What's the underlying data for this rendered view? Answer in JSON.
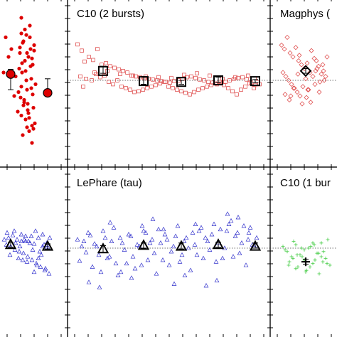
{
  "figure": {
    "background": "#ffffff",
    "frame_color": "#000000"
  },
  "chart_data": [
    {
      "panel": "top-left",
      "type": "scatter",
      "title": "",
      "color": "#dd0000",
      "marker": "filled-circle",
      "x": [
        8,
        16,
        12,
        5,
        20,
        30,
        38,
        45,
        33,
        42,
        48,
        28,
        35,
        40,
        46,
        22,
        31,
        37,
        50,
        44,
        26,
        34,
        39,
        47,
        30,
        43,
        25,
        36,
        49,
        32,
        41,
        27,
        38,
        45,
        30,
        35,
        42,
        48,
        29,
        33,
        40,
        36,
        44,
        31,
        38,
        46,
        28,
        34,
        41,
        47,
        32,
        37,
        43,
        30,
        39,
        45
      ],
      "y": [
        0.55,
        0.4,
        0.3,
        0.1,
        -0.2,
        -0.45,
        -0.6,
        -0.8,
        0.5,
        0.7,
        0.45,
        0.35,
        0.25,
        0.3,
        0.2,
        0.05,
        0.1,
        0.0,
        -0.05,
        -0.1,
        -0.15,
        -0.25,
        -0.3,
        -0.35,
        0.6,
        0.4,
        -0.4,
        -0.5,
        -0.55,
        -0.7,
        -0.65,
        0.15,
        0.35,
        0.28,
        0.8,
        0.65,
        0.55,
        0.38,
        -0.22,
        -0.32,
        -0.42,
        0.12,
        0.02,
        0.22,
        -0.12,
        -0.18,
        0.42,
        -0.28,
        -0.48,
        -0.62,
        0.48,
        0.58,
        0.18,
        -0.08,
        -0.38,
        -0.58
      ],
      "binned": {
        "x": [
          15,
          67
        ],
        "y": [
          0.08,
          -0.16
        ],
        "err_low": [
          0.2,
          0.03
        ],
        "err_high": [
          0.06,
          0.18
        ],
        "marker": "large-filled-circle"
      }
    },
    {
      "panel": "top-middle",
      "type": "scatter",
      "title": "C10 (2 bursts)",
      "color": "#e05555",
      "marker": "open-square",
      "x": [
        14,
        20,
        24,
        30,
        36,
        42,
        48,
        54,
        60,
        66,
        72,
        78,
        84,
        90,
        96,
        102,
        108,
        114,
        120,
        126,
        132,
        138,
        144,
        150,
        156,
        162,
        168,
        174,
        180,
        186,
        192,
        198,
        204,
        210,
        216,
        222,
        228,
        234,
        240,
        246,
        252,
        258,
        264,
        270,
        18,
        26,
        34,
        40,
        46,
        52,
        58,
        64,
        70,
        76,
        82,
        88,
        94,
        100,
        106,
        112,
        118,
        124,
        130,
        136,
        142,
        148,
        154,
        160,
        166,
        172,
        178,
        184,
        190,
        196,
        202,
        208,
        214,
        220,
        226,
        232,
        238,
        244,
        250,
        256,
        262,
        22,
        38,
        56,
        74,
        92,
        110,
        128,
        146,
        164,
        182,
        200,
        218,
        236,
        254,
        268
      ],
      "y": [
        0.46,
        0.38,
        0.24,
        0.3,
        0.26,
        0.4,
        0.2,
        0.22,
        0.18,
        0.16,
        0.14,
        0.12,
        0.1,
        0.06,
        0.05,
        0.04,
        0.03,
        0.02,
        0.01,
        0.0,
        -0.01,
        -0.02,
        -0.03,
        -0.01,
        0.0,
        0.02,
        0.04,
        0.05,
        0.03,
        0.01,
        0.0,
        -0.02,
        -0.03,
        -0.05,
        -0.04,
        -0.02,
        0.0,
        0.02,
        0.03,
        0.04,
        0.01,
        -0.03,
        -0.06,
        -0.05,
        0.05,
        0.02,
        0.0,
        0.08,
        0.04,
        0.06,
        -0.02,
        -0.05,
        0.0,
        -0.08,
        -0.1,
        -0.12,
        -0.15,
        -0.14,
        -0.12,
        -0.1,
        -0.08,
        -0.06,
        -0.04,
        -0.02,
        -0.08,
        -0.1,
        -0.12,
        -0.14,
        -0.16,
        -0.18,
        -0.15,
        -0.12,
        -0.1,
        -0.08,
        -0.06,
        -0.04,
        -0.02,
        -0.06,
        -0.1,
        -0.14,
        -0.18,
        -0.12,
        -0.08,
        -0.04,
        -0.1,
        -0.08,
        0.1,
        0.12,
        0.08,
        0.06,
        0.05,
        0.04,
        0.03,
        0.07,
        0.09,
        0.06,
        0.02,
        0.04,
        0.06,
        0.02
      ],
      "binned": {
        "x": [
          50,
          107,
          160,
          212,
          264
        ],
        "y": [
          0.12,
          -0.01,
          -0.02,
          0.0,
          -0.01
        ],
        "err_low": [
          0.03,
          0.04,
          0.03,
          0.03,
          0.02
        ],
        "err_high": [
          0.06,
          0.06,
          0.02,
          0.04,
          0.02
        ],
        "marker": "large-open-square"
      }
    },
    {
      "panel": "top-right",
      "type": "scatter",
      "title": "Magphys (",
      "color": "#e05555",
      "marker": "open-diamond",
      "x": [
        16,
        20,
        24,
        28,
        32,
        36,
        40,
        44,
        48,
        52,
        56,
        60,
        64,
        68,
        72,
        76,
        80,
        18,
        22,
        26,
        30,
        34,
        38,
        42,
        46,
        50,
        54,
        58,
        62,
        66,
        70,
        74,
        78,
        21,
        27,
        33,
        39,
        45,
        51,
        57,
        63,
        69,
        75,
        29,
        41,
        53,
        65
      ],
      "y": [
        0.45,
        0.4,
        0.55,
        0.35,
        0.3,
        0.42,
        0.25,
        0.2,
        0.15,
        0.22,
        0.1,
        0.05,
        0.12,
        0.18,
        0.08,
        0.0,
        0.3,
        0.1,
        0.05,
        0.0,
        -0.05,
        -0.1,
        -0.15,
        -0.2,
        -0.08,
        0.02,
        -0.12,
        0.38,
        0.28,
        0.15,
        -0.02,
        0.2,
        0.05,
        -0.18,
        -0.25,
        -0.1,
        0.08,
        -0.3,
        -0.22,
        -0.28,
        -0.05,
        -0.15,
        0.12,
        -0.2,
        0.32,
        -0.12,
        0.25
      ],
      "binned": {
        "x": [
          50
        ],
        "y": [
          0.12
        ],
        "err_low": [
          0.03
        ],
        "err_high": [
          0.03
        ],
        "marker": "large-open-diamond"
      }
    },
    {
      "panel": "bottom-left",
      "type": "scatter",
      "title": "",
      "color": "#2b2bcc",
      "marker": "open-triangle",
      "x": [
        6,
        12,
        18,
        24,
        30,
        36,
        42,
        48,
        54,
        60,
        66,
        9,
        15,
        21,
        27,
        33,
        39,
        45,
        51,
        57,
        63,
        69,
        10,
        20,
        30,
        40,
        50,
        60,
        14,
        26,
        38,
        52,
        64,
        22,
        34,
        46,
        58,
        70,
        28,
        44,
        56,
        68,
        32,
        48,
        62,
        36,
        54,
        66
      ],
      "y": [
        0.1,
        0.12,
        0.15,
        0.1,
        0.08,
        0.14,
        0.06,
        0.05,
        0.12,
        0.02,
        0.0,
        0.04,
        0.02,
        -0.02,
        -0.04,
        -0.06,
        -0.1,
        -0.14,
        -0.18,
        -0.22,
        -0.26,
        -0.3,
        0.18,
        0.2,
        0.16,
        0.08,
        0.2,
        0.16,
        -0.08,
        -0.12,
        -0.16,
        -0.2,
        -0.24,
        0.06,
        0.1,
        -0.02,
        -0.08,
        0.12,
        0.02,
        0.14,
        -0.04,
        0.0,
        -0.14,
        -0.28,
        0.04,
        0.08,
        -0.12,
        0.06
      ],
      "binned": {
        "x": [
          15,
          67
        ],
        "y": [
          0.04,
          0.02
        ],
        "err_low": [
          0.03,
          0.03
        ],
        "err_high": [
          0.03,
          0.03
        ],
        "marker": "large-open-triangle"
      }
    },
    {
      "panel": "bottom-middle",
      "type": "scatter",
      "title": "LePhare (tau)",
      "color": "#3333cc",
      "marker": "open-triangle",
      "x": [
        14,
        20,
        26,
        32,
        38,
        44,
        50,
        56,
        62,
        68,
        74,
        80,
        86,
        92,
        98,
        104,
        110,
        116,
        122,
        128,
        134,
        140,
        146,
        152,
        158,
        164,
        170,
        176,
        182,
        188,
        194,
        200,
        206,
        212,
        218,
        224,
        230,
        236,
        242,
        248,
        254,
        260,
        266,
        17,
        23,
        29,
        35,
        41,
        47,
        53,
        59,
        65,
        71,
        77,
        83,
        89,
        95,
        101,
        107,
        113,
        119,
        125,
        131,
        137,
        143,
        149,
        155,
        161,
        167,
        173,
        179,
        185,
        191,
        197,
        203,
        209,
        215,
        221,
        227,
        233,
        239,
        245,
        251,
        257,
        263,
        30,
        60,
        90,
        120,
        150,
        180,
        210,
        240,
        45,
        105,
        165,
        225,
        75,
        135,
        195,
        255
      ],
      "y": [
        0.1,
        0.02,
        -0.05,
        0.15,
        0.05,
        -0.08,
        0.2,
        -0.12,
        0.08,
        -0.18,
        0.12,
        -0.02,
        0.16,
        -0.1,
        0.04,
        -0.2,
        0.18,
        0.06,
        -0.06,
        0.22,
        -0.14,
        0.1,
        -0.04,
        0.14,
        -0.16,
        0.08,
        0.0,
        0.18,
        -0.08,
        0.24,
        0.12,
        -0.02,
        0.28,
        0.06,
        -0.12,
        0.2,
        0.32,
        0.14,
        -0.06,
        0.26,
        0.1,
        0.04,
        0.12,
        -0.15,
        0.08,
        0.18,
        -0.22,
        0.02,
        -0.28,
        0.12,
        -0.1,
        0.24,
        -0.32,
        0.06,
        -0.18,
        0.14,
        -0.24,
        0.02,
        0.2,
        -0.14,
        0.1,
        -0.3,
        0.06,
        0.16,
        -0.2,
        0.02,
        0.26,
        -0.08,
        0.12,
        -0.26,
        0.04,
        0.2,
        -0.12,
        0.08,
        0.16,
        -0.16,
        0.22,
        0.0,
        0.28,
        -0.1,
        0.18,
        0.06,
        -0.2,
        0.24,
        0.02,
        -0.4,
        0.3,
        -0.35,
        0.34,
        -0.42,
        0.28,
        -0.38,
        0.36,
        -0.46,
        0.26,
        -0.32,
        0.4,
        -0.28,
        0.22,
        -0.44,
        0.18
      ],
      "binned": {
        "x": [
          50,
          107,
          160,
          212,
          264
        ],
        "y": [
          -0.01,
          0.03,
          0.02,
          0.04,
          0.02
        ],
        "err_low": [
          0.04,
          0.03,
          0.03,
          0.03,
          0.02
        ],
        "err_high": [
          0.04,
          0.03,
          0.04,
          0.03,
          0.04
        ],
        "marker": "large-open-triangle"
      }
    },
    {
      "panel": "bottom-right",
      "type": "scatter",
      "title": "C10 (1 bur",
      "color": "#44cc44",
      "marker": "plus",
      "x": [
        18,
        24,
        30,
        36,
        42,
        48,
        54,
        60,
        66,
        72,
        78,
        84,
        21,
        27,
        33,
        39,
        45,
        51,
        57,
        63,
        69,
        75,
        81,
        26,
        38,
        50,
        62,
        74,
        32,
        44,
        56,
        68,
        80,
        36,
        48,
        60,
        72
      ],
      "y": [
        0.02,
        -0.04,
        -0.1,
        0.04,
        -0.08,
        -0.14,
        0.0,
        -0.18,
        -0.06,
        0.06,
        -0.12,
        -0.2,
        -0.02,
        -0.16,
        0.08,
        -0.22,
        -0.1,
        -0.26,
        0.02,
        -0.14,
        -0.3,
        -0.04,
        0.1,
        -0.2,
        -0.08,
        -0.28,
        0.04,
        -0.16,
        -0.12,
        0.0,
        -0.22,
        -0.06,
        -0.18,
        -0.24,
        -0.02,
        0.06,
        -0.1
      ],
      "binned": {
        "x": [
          50
        ],
        "y": [
          -0.16
        ],
        "err_low": [
          0.03
        ],
        "err_high": [
          0.03
        ],
        "marker": "large-plus"
      }
    }
  ]
}
